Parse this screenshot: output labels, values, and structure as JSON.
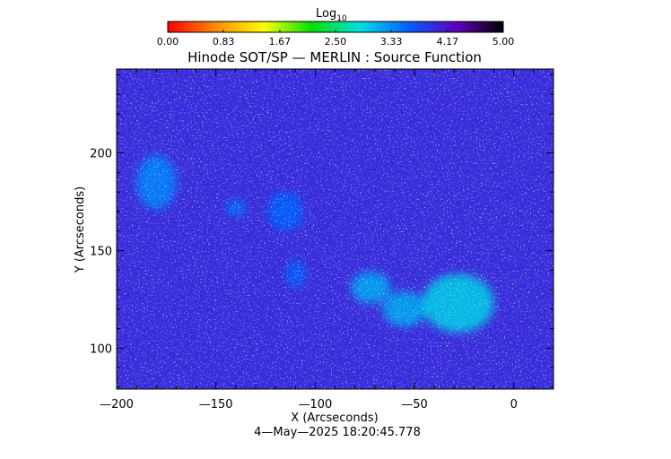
{
  "chart_data": {
    "type": "heatmap",
    "title": "Hinode SOT/SP — MERLIN : Source Function",
    "xlabel": "X (Arcseconds)",
    "ylabel": "Y (Arcseconds)",
    "timestamp": "4—May—2025 18:20:45.778",
    "xlim": [
      -200,
      20
    ],
    "ylim": [
      79,
      243
    ],
    "xticks": [
      -200,
      -150,
      -100,
      -50,
      0
    ],
    "xtick_labels": [
      "—200",
      "—150",
      "—100",
      "—50",
      "0"
    ],
    "yticks": [
      100,
      150,
      200
    ],
    "ytick_labels": [
      "100",
      "150",
      "200"
    ],
    "colorbar": {
      "label": "Log",
      "label_sub": "10",
      "range": [
        0,
        5
      ],
      "ticks": [
        0.0,
        0.83,
        1.67,
        2.5,
        3.33,
        4.17,
        5.0
      ],
      "tick_labels": [
        "0.00",
        "0.83",
        "1.67",
        "2.50",
        "3.33",
        "4.17",
        "5.00"
      ],
      "colors": [
        "#ff0000",
        "#ff8c00",
        "#ffff00",
        "#00e000",
        "#00e0e0",
        "#0060ff",
        "#6000c0",
        "#000000"
      ]
    },
    "background_value": 4.0,
    "bright_regions": [
      {
        "x": -180,
        "y": 185,
        "rx": 10,
        "ry": 14,
        "value": 3.4
      },
      {
        "x": -140,
        "y": 172,
        "rx": 5,
        "ry": 4,
        "value": 3.5
      },
      {
        "x": -115,
        "y": 170,
        "rx": 9,
        "ry": 10,
        "value": 3.6
      },
      {
        "x": -110,
        "y": 138,
        "rx": 5,
        "ry": 7,
        "value": 3.6
      },
      {
        "x": -72,
        "y": 131,
        "rx": 10,
        "ry": 8,
        "value": 3.2
      },
      {
        "x": -55,
        "y": 120,
        "rx": 11,
        "ry": 9,
        "value": 3.2
      },
      {
        "x": -28,
        "y": 123,
        "rx": 18,
        "ry": 15,
        "value": 3.0
      }
    ]
  }
}
